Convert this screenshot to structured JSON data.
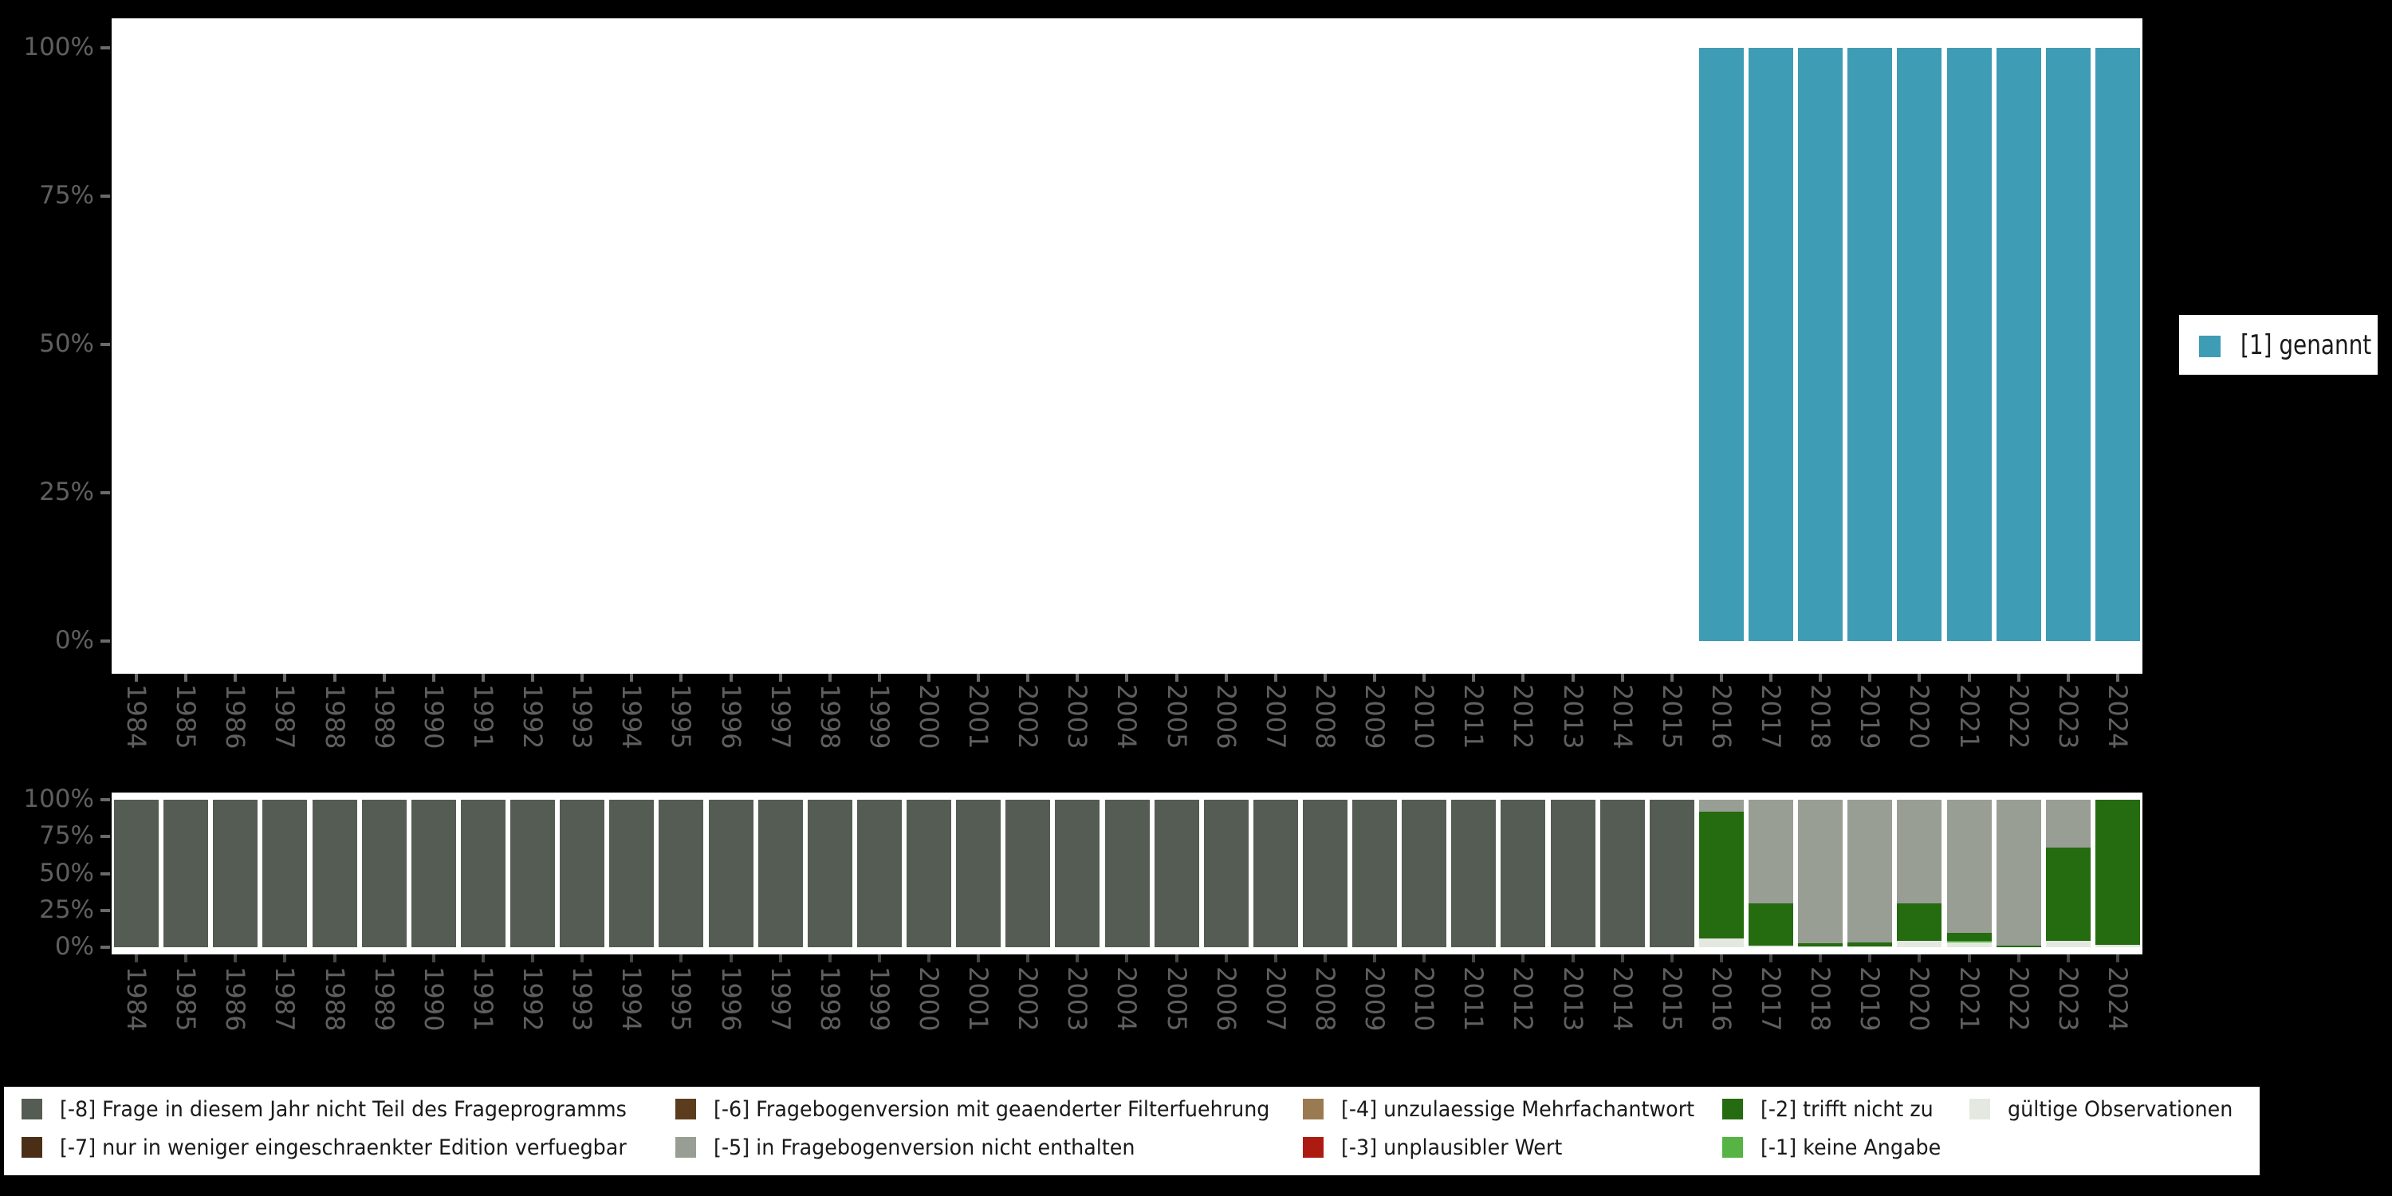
{
  "colors": {
    "background": "#000000",
    "panel": "#ffffff",
    "axis_text": "#5f5f5f",
    "tick_top": "#6a6a6a",
    "tick_bottom": "#454545",
    "legend_text": "#1a1a1a",
    "genannt_teal": "#3e9cb5"
  },
  "x_axis_years": [
    "1984",
    "1985",
    "1986",
    "1987",
    "1988",
    "1989",
    "1990",
    "1991",
    "1992",
    "1993",
    "1994",
    "1995",
    "1996",
    "1997",
    "1998",
    "1999",
    "2000",
    "2001",
    "2002",
    "2003",
    "2004",
    "2005",
    "2006",
    "2007",
    "2008",
    "2009",
    "2010",
    "2011",
    "2012",
    "2013",
    "2014",
    "2015",
    "2016",
    "2017",
    "2018",
    "2019",
    "2020",
    "2021",
    "2022",
    "2023",
    "2024"
  ],
  "top_chart": {
    "y_tick_labels": [
      "100%",
      "75%",
      "50%",
      "25%",
      "0%"
    ],
    "legend": {
      "label": "[1] genannt",
      "color": "#3e9cb5"
    }
  },
  "bottom_chart": {
    "y_tick_labels": [
      "100%",
      "75%",
      "50%",
      "25%",
      "0%"
    ]
  },
  "legend_bottom": {
    "entries": [
      {
        "label": "[-8] Frage in diesem Jahr nicht Teil des Frageprogramms",
        "color": "#555c53",
        "col": 0,
        "row": 0
      },
      {
        "label": "[-7] nur in weniger eingeschraenkter Edition verfuegbar",
        "color": "#4a2f16",
        "col": 0,
        "row": 1
      },
      {
        "label": "[-6] Fragebogenversion mit geaenderter Filterfuehrung",
        "color": "#5b3d1e",
        "col": 1,
        "row": 0
      },
      {
        "label": "[-5] in Fragebogenversion nicht enthalten",
        "color": "#989e94",
        "col": 1,
        "row": 1
      },
      {
        "label": "[-4] unzulaessige Mehrfachantwort",
        "color": "#9a7b51",
        "col": 2,
        "row": 0
      },
      {
        "label": "[-3] unplausibler Wert",
        "color": "#ad1b10",
        "col": 2,
        "row": 1
      },
      {
        "label": "[-2] trifft nicht zu",
        "color": "#256b10",
        "col": 3,
        "row": 0
      },
      {
        "label": "[-1] keine Angabe",
        "color": "#55b444",
        "col": 3,
        "row": 1
      },
      {
        "label": "gültige Observationen",
        "color": "#e3e8e0",
        "col": 4,
        "row": 0
      }
    ]
  },
  "chart_data": [
    {
      "type": "bar",
      "title": "",
      "xlabel": "",
      "ylabel": "",
      "ylim": [
        0,
        100
      ],
      "y_ticks": [
        0,
        25,
        50,
        75,
        100
      ],
      "grid": false,
      "legend_position": "right",
      "categories": [
        "1984",
        "1985",
        "1986",
        "1987",
        "1988",
        "1989",
        "1990",
        "1991",
        "1992",
        "1993",
        "1994",
        "1995",
        "1996",
        "1997",
        "1998",
        "1999",
        "2000",
        "2001",
        "2002",
        "2003",
        "2004",
        "2005",
        "2006",
        "2007",
        "2008",
        "2009",
        "2010",
        "2011",
        "2012",
        "2013",
        "2014",
        "2015",
        "2016",
        "2017",
        "2018",
        "2019",
        "2020",
        "2021",
        "2022",
        "2023",
        "2024"
      ],
      "series": [
        {
          "name": "[1] genannt",
          "color": "#3e9cb5",
          "values": [
            null,
            null,
            null,
            null,
            null,
            null,
            null,
            null,
            null,
            null,
            null,
            null,
            null,
            null,
            null,
            null,
            null,
            null,
            null,
            null,
            null,
            null,
            null,
            null,
            null,
            null,
            null,
            null,
            null,
            null,
            null,
            null,
            100,
            100,
            100,
            100,
            100,
            100,
            100,
            100,
            100
          ]
        }
      ]
    },
    {
      "type": "bar",
      "stacked": true,
      "title": "",
      "xlabel": "",
      "ylabel": "",
      "ylim": [
        0,
        100
      ],
      "y_ticks": [
        0,
        25,
        50,
        75,
        100
      ],
      "grid": false,
      "legend_position": "bottom",
      "categories": [
        "1984",
        "1985",
        "1986",
        "1987",
        "1988",
        "1989",
        "1990",
        "1991",
        "1992",
        "1993",
        "1994",
        "1995",
        "1996",
        "1997",
        "1998",
        "1999",
        "2000",
        "2001",
        "2002",
        "2003",
        "2004",
        "2005",
        "2006",
        "2007",
        "2008",
        "2009",
        "2010",
        "2011",
        "2012",
        "2013",
        "2014",
        "2015",
        "2016",
        "2017",
        "2018",
        "2019",
        "2020",
        "2021",
        "2022",
        "2023",
        "2024"
      ],
      "series": [
        {
          "name": "gültige Observationen",
          "color": "#e3e8e0",
          "values": [
            0,
            0,
            0,
            0,
            0,
            0,
            0,
            0,
            0,
            0,
            0,
            0,
            0,
            0,
            0,
            0,
            0,
            0,
            0,
            0,
            0,
            0,
            0,
            0,
            0,
            0,
            0,
            0,
            0,
            0,
            0,
            0,
            6,
            1,
            0.5,
            0.5,
            4.5,
            3.3,
            0,
            4.5,
            1.5
          ]
        },
        {
          "name": "[-1] keine Angabe",
          "color": "#55b444",
          "values": [
            0,
            0,
            0,
            0,
            0,
            0,
            0,
            0,
            0,
            0,
            0,
            0,
            0,
            0,
            0,
            0,
            0,
            0,
            0,
            0,
            0,
            0,
            0,
            0,
            0,
            0,
            0,
            0,
            0,
            0,
            0,
            0,
            0,
            0,
            0,
            0,
            0,
            1.2,
            0,
            0,
            0
          ]
        },
        {
          "name": "[-2] trifft nicht zu",
          "color": "#256b10",
          "values": [
            0,
            0,
            0,
            0,
            0,
            0,
            0,
            0,
            0,
            0,
            0,
            0,
            0,
            0,
            0,
            0,
            0,
            0,
            0,
            0,
            0,
            0,
            0,
            0,
            0,
            0,
            0,
            0,
            0,
            0,
            0,
            0,
            86,
            29,
            2,
            3,
            25.5,
            5.5,
            1.3,
            63,
            98.5
          ]
        },
        {
          "name": "[-3] unplausibler Wert",
          "color": "#ad1b10",
          "values": [
            0,
            0,
            0,
            0,
            0,
            0,
            0,
            0,
            0,
            0,
            0,
            0,
            0,
            0,
            0,
            0,
            0,
            0,
            0,
            0,
            0,
            0,
            0,
            0,
            0,
            0,
            0,
            0,
            0,
            0,
            0,
            0,
            0,
            0,
            0,
            0,
            0,
            0,
            0,
            0,
            0
          ]
        },
        {
          "name": "[-4] unzulaessige Mehrfachantwort",
          "color": "#9a7b51",
          "values": [
            0,
            0,
            0,
            0,
            0,
            0,
            0,
            0,
            0,
            0,
            0,
            0,
            0,
            0,
            0,
            0,
            0,
            0,
            0,
            0,
            0,
            0,
            0,
            0,
            0,
            0,
            0,
            0,
            0,
            0,
            0,
            0,
            0,
            0,
            0,
            0,
            0,
            0,
            0,
            0,
            0
          ]
        },
        {
          "name": "[-5] in Fragebogenversion nicht enthalten",
          "color": "#989e94",
          "values": [
            0,
            0,
            0,
            0,
            0,
            0,
            0,
            0,
            0,
            0,
            0,
            0,
            0,
            0,
            0,
            0,
            0,
            0,
            0,
            0,
            0,
            0,
            0,
            0,
            0,
            0,
            0,
            0,
            0,
            0,
            0,
            0,
            8,
            70,
            97.5,
            96.5,
            70,
            90,
            98.7,
            32.5,
            0
          ]
        },
        {
          "name": "[-6] Fragebogenversion mit geaenderter Filterfuehrung",
          "color": "#5b3d1e",
          "values": [
            0,
            0,
            0,
            0,
            0,
            0,
            0,
            0,
            0,
            0,
            0,
            0,
            0,
            0,
            0,
            0,
            0,
            0,
            0,
            0,
            0,
            0,
            0,
            0,
            0,
            0,
            0,
            0,
            0,
            0,
            0,
            0,
            0,
            0,
            0,
            0,
            0,
            0,
            0,
            0,
            0
          ]
        },
        {
          "name": "[-7] nur in weniger eingeschraenkter Edition verfuegbar",
          "color": "#4a2f16",
          "values": [
            0,
            0,
            0,
            0,
            0,
            0,
            0,
            0,
            0,
            0,
            0,
            0,
            0,
            0,
            0,
            0,
            0,
            0,
            0,
            0,
            0,
            0,
            0,
            0,
            0,
            0,
            0,
            0,
            0,
            0,
            0,
            0,
            0,
            0,
            0,
            0,
            0,
            0,
            0,
            0,
            0
          ]
        },
        {
          "name": "[-8] Frage in diesem Jahr nicht Teil des Frageprogramms",
          "color": "#555c53",
          "values": [
            100,
            100,
            100,
            100,
            100,
            100,
            100,
            100,
            100,
            100,
            100,
            100,
            100,
            100,
            100,
            100,
            100,
            100,
            100,
            100,
            100,
            100,
            100,
            100,
            100,
            100,
            100,
            100,
            100,
            100,
            100,
            100,
            0,
            0,
            0,
            0,
            0,
            0,
            0,
            0,
            0
          ]
        }
      ]
    }
  ]
}
